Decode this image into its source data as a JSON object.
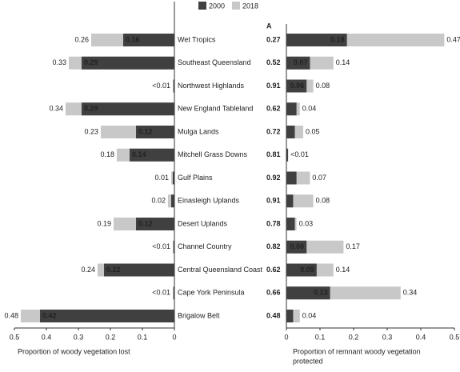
{
  "chart_data": [
    {
      "type": "bar",
      "orientation": "horizontal",
      "reversed": true,
      "categories": [
        "Wet Tropics",
        "Southeast Queensland",
        "Northwest Highlands",
        "New England Tableland",
        "Mulga Lands",
        "Mitchell Grass Downs",
        "Gulf Plains",
        "Einasleigh Uplands",
        "Desert Uplands",
        "Channel Country",
        "Central Queensland Coast",
        "Cape York Peninsula",
        "Brigalow Belt"
      ],
      "series": [
        {
          "name": "2000",
          "color": "#404040",
          "values": [
            0.16,
            0.29,
            0.003,
            0.29,
            0.12,
            0.14,
            0.005,
            0.01,
            0.12,
            0.003,
            0.22,
            0.003,
            0.42
          ],
          "value_labels": [
            "0.16",
            "0.29",
            null,
            "0.29",
            "0.12",
            "0.14",
            null,
            null,
            "0.12",
            null,
            "0.22",
            null,
            "0.42"
          ]
        },
        {
          "name": "2018",
          "color": "#c8c8c8",
          "values": [
            0.26,
            0.33,
            0.005,
            0.34,
            0.23,
            0.18,
            0.01,
            0.02,
            0.19,
            0.005,
            0.24,
            0.005,
            0.48
          ],
          "value_labels": [
            "0.26",
            "0.33",
            "<0.01",
            "0.34",
            "0.23",
            "0.18",
            "0.01",
            "0.02",
            "0.19",
            "<0.01",
            "0.24",
            "<0.01",
            "0.48"
          ]
        }
      ],
      "xlim": [
        0,
        0.5
      ],
      "xticks": [
        0.5,
        0.4,
        0.3,
        0.2,
        0.1,
        0
      ],
      "xlabel": [
        "Proportion of woody vegetation lost"
      ]
    },
    {
      "type": "bar",
      "orientation": "horizontal",
      "panel_label": "A",
      "center_labels": [
        "0.27",
        "0.52",
        "0.91",
        "0.62",
        "0.72",
        "0.81",
        "0.92",
        "0.91",
        "0.78",
        "0.82",
        "0.62",
        "0.66",
        "0.48"
      ],
      "series": [
        {
          "color": "#404040",
          "values": [
            0.18,
            0.07,
            0.06,
            0.03,
            0.025,
            0.005,
            0.03,
            0.02,
            0.025,
            0.06,
            0.09,
            0.13,
            0.02
          ],
          "value_labels": [
            "0.18",
            "0.07",
            "0.06",
            null,
            null,
            null,
            null,
            null,
            null,
            "0.06",
            "0.09",
            "0.13",
            null
          ]
        },
        {
          "color": "#c8c8c8",
          "values": [
            0.47,
            0.14,
            0.08,
            0.04,
            0.05,
            0.005,
            0.07,
            0.08,
            0.03,
            0.17,
            0.14,
            0.34,
            0.04
          ],
          "value_labels": [
            "0.47",
            "0.14",
            "0.08",
            "0.04",
            "0.05",
            "<0.01",
            "0.07",
            "0.08",
            "0.03",
            "0.17",
            "0.14",
            "0.34",
            "0.04"
          ]
        }
      ],
      "xlim": [
        0,
        0.5
      ],
      "xticks": [
        0,
        0.1,
        0.2,
        0.3,
        0.4,
        0.5
      ],
      "xlabel": [
        "Proportion of remnant woody vegetation",
        "protected"
      ]
    }
  ]
}
